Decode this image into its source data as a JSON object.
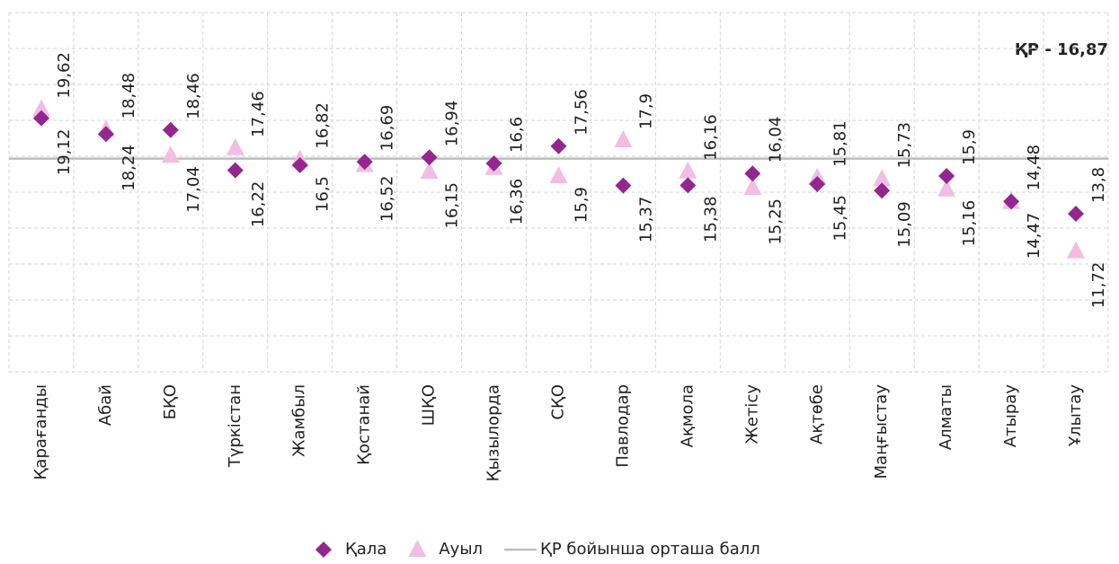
{
  "chart_data": {
    "type": "scatter",
    "categories": [
      "Қарағанды",
      "Абай",
      "БҚО",
      "Түркістан",
      "Жамбыл",
      "Қостанай",
      "ШҚО",
      "Қызылорда",
      "СҚО",
      "Павлодар",
      "Ақмола",
      "Жетісу",
      "Ақтөбе",
      "Маңғыстау",
      "Алматы",
      "Атырау",
      "Ұлытау"
    ],
    "series": [
      {
        "name": "Қала",
        "color": "#93278f",
        "marker": "diamond",
        "values": [
          19.12,
          18.24,
          18.46,
          16.22,
          16.5,
          16.69,
          16.94,
          16.6,
          17.56,
          15.37,
          15.38,
          16.04,
          15.45,
          15.09,
          15.9,
          14.48,
          13.8
        ],
        "value_labels": [
          "19,12",
          "18,24",
          "18,46",
          "16,22",
          "16,5",
          "16,69",
          "16,94",
          "16,6",
          "17,56",
          "15,37",
          "15,38",
          "16,04",
          "15,45",
          "15,09",
          "15,9",
          "14,48",
          "13,8"
        ]
      },
      {
        "name": "Ауыл",
        "color": "#f2bde3",
        "marker": "triangle",
        "values": [
          19.62,
          18.48,
          17.04,
          17.46,
          16.82,
          16.52,
          16.15,
          16.36,
          15.9,
          17.9,
          16.16,
          15.25,
          15.81,
          15.73,
          15.16,
          14.47,
          11.72
        ],
        "value_labels": [
          "19,62",
          "18,48",
          "17,04",
          "17,46",
          "16,82",
          "16,52",
          "16,15",
          "16,36",
          "15,9",
          "17,9",
          "16,16",
          "15,25",
          "15,81",
          "15,73",
          "15,16",
          "14,47",
          "11,72"
        ]
      }
    ],
    "reference_line": {
      "name": "ҚР бойынша орташа балл",
      "value": 16.87,
      "color": "#bdbdbd"
    },
    "annotation": "ҚР - 16,87",
    "ylim": [
      5,
      25
    ],
    "yticks": [
      5,
      7,
      9,
      11,
      13,
      15,
      17,
      19,
      21,
      23,
      25
    ],
    "grid": true,
    "legend": "bottom"
  }
}
